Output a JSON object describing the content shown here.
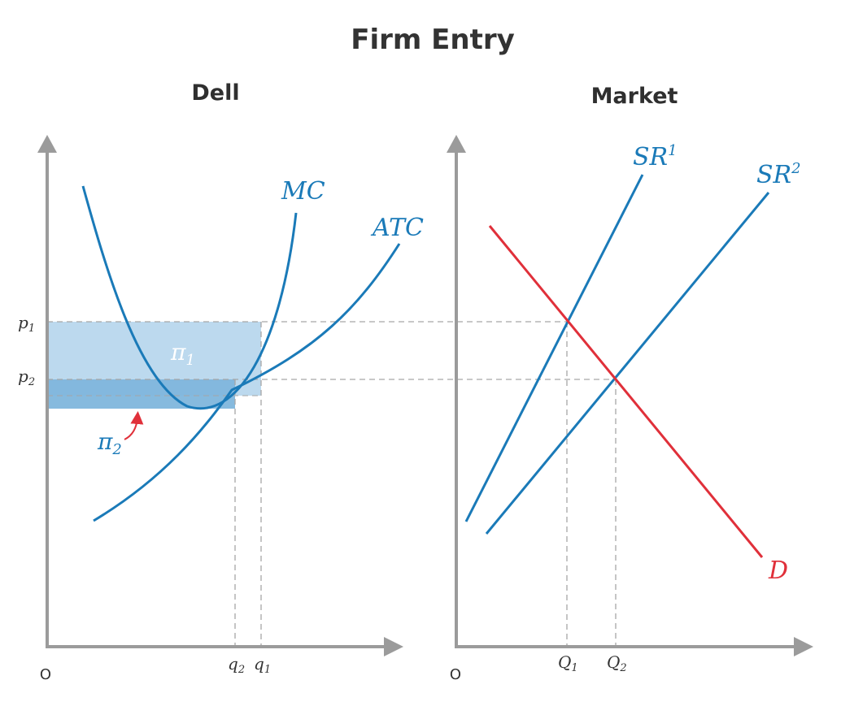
{
  "title": "Firm Entry",
  "colors": {
    "curve_blue": "#1a7ab8",
    "demand_red": "#e0303a",
    "axis_gray": "#9b9b9b",
    "profit_light": "#bcd9ee",
    "profit_dark": "#7fb6dc",
    "guide_gray": "#a6a6a6"
  },
  "left_panel": {
    "title": "Dell",
    "origin": "O",
    "curves": {
      "mc": "MC",
      "atc": "ATC"
    },
    "price_labels": {
      "p1": {
        "base": "p",
        "sub": "1"
      },
      "p2": {
        "base": "p",
        "sub": "2"
      }
    },
    "quantity_labels": {
      "q2": {
        "base": "q",
        "sub": "2"
      },
      "q1": {
        "base": "q",
        "sub": "1"
      }
    },
    "profit_labels": {
      "pi1": {
        "base": "π",
        "sub": "1"
      },
      "pi2": {
        "base": "π",
        "sub": "2"
      }
    }
  },
  "right_panel": {
    "title": "Market",
    "origin": "O",
    "curves": {
      "sr1": {
        "base": "SR",
        "sup": "1"
      },
      "sr2": {
        "base": "SR",
        "sup": "2"
      },
      "d": "D"
    },
    "quantity_labels": {
      "Q1": {
        "base": "Q",
        "sub": "1"
      },
      "Q2": {
        "base": "Q",
        "sub": "2"
      }
    }
  }
}
